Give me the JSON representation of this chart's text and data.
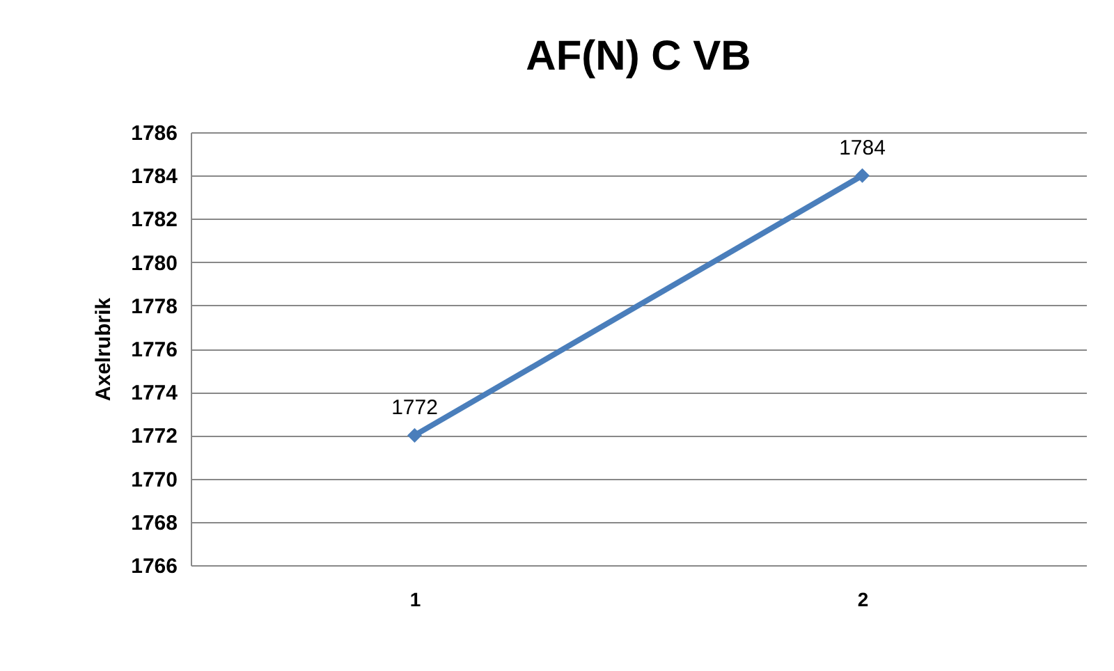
{
  "chart_data": {
    "type": "line",
    "title": "AF(N) C VB",
    "ylabel": "Axelrubrik",
    "categories": [
      "1",
      "2"
    ],
    "values": [
      1772,
      1784
    ],
    "color": "#4a7ebb",
    "ylim": [
      1766,
      1786
    ],
    "yticks": [
      1766,
      1768,
      1770,
      1772,
      1774,
      1776,
      1778,
      1780,
      1782,
      1784,
      1786
    ],
    "grid": "y",
    "marker": "diamond",
    "data_labels": true
  }
}
